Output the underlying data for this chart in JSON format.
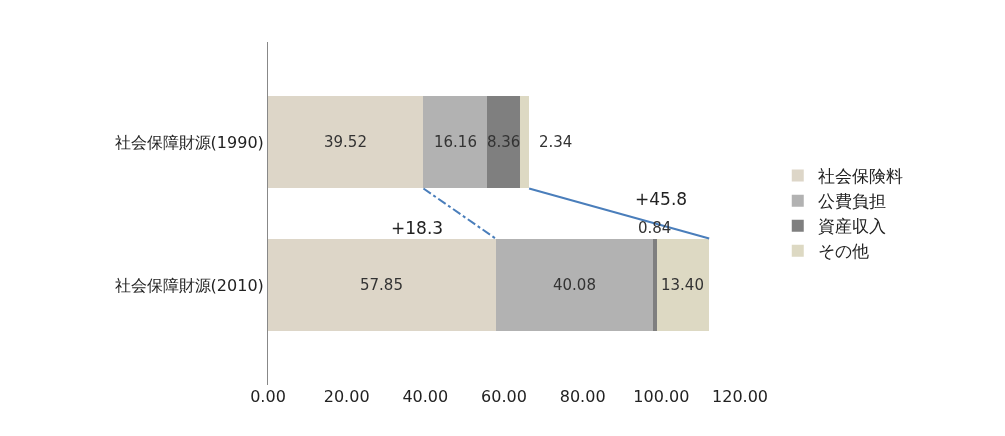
{
  "chart_data": {
    "type": "bar",
    "orientation": "horizontal",
    "stacked": true,
    "legend": "right",
    "grid": false,
    "categories": [
      "社会保障財源(1990)",
      "社会保障財源(2010)"
    ],
    "series": [
      {
        "name": "社会保険料",
        "color": "#ddd6c8",
        "values": [
          39.52,
          57.85
        ],
        "value_labels": [
          "39.52",
          "57.85"
        ]
      },
      {
        "name": "公費負担",
        "color": "#b2b2b2",
        "values": [
          16.16,
          40.08
        ],
        "value_labels": [
          "16.16",
          "40.08"
        ]
      },
      {
        "name": "資産収入",
        "color": "#7f7f7f",
        "values": [
          8.36,
          0.84
        ],
        "value_labels": [
          "8.36",
          "0.84"
        ]
      },
      {
        "name": "その他",
        "color": "#ddd9c3",
        "values": [
          2.34,
          13.4
        ],
        "value_labels": [
          "2.34",
          "13.40"
        ]
      }
    ],
    "xlim": [
      0,
      120
    ],
    "xticks": [
      {
        "value": 0,
        "label": "0.00"
      },
      {
        "value": 20,
        "label": "20.00"
      },
      {
        "value": 40,
        "label": "40.00"
      },
      {
        "value": 60,
        "label": "60.00"
      },
      {
        "value": 80,
        "label": "80.00"
      },
      {
        "value": 100,
        "label": "100.00"
      },
      {
        "value": 120,
        "label": "120.00"
      }
    ],
    "annotations": [
      "+18.3",
      "+45.8"
    ]
  }
}
